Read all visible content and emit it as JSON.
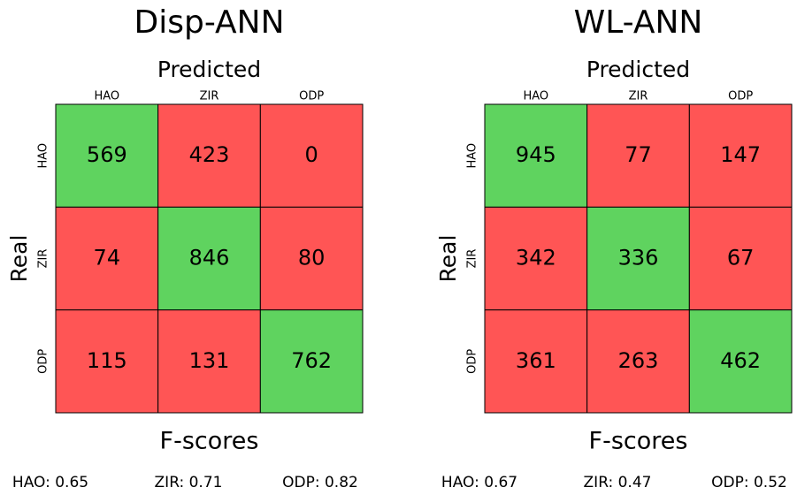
{
  "chart_data": [
    {
      "type": "confusion_matrix",
      "title": "Disp-ANN",
      "xlabel": "Predicted",
      "ylabel": "Real",
      "categories": [
        "HAO",
        "ZIR",
        "ODP"
      ],
      "values": [
        [
          569,
          423,
          0
        ],
        [
          74,
          846,
          80
        ],
        [
          115,
          131,
          762
        ]
      ],
      "diagonal_color": "#5fd35f",
      "off_diagonal_color": "#ff5555",
      "footer_title": "F-scores",
      "footer_items": [
        "HAO: 0.65",
        "ZIR: 0.71",
        "ODP: 0.82"
      ]
    },
    {
      "type": "confusion_matrix",
      "title": "WL-ANN",
      "xlabel": "Predicted",
      "ylabel": "Real",
      "categories": [
        "HAO",
        "ZIR",
        "ODP"
      ],
      "values": [
        [
          945,
          77,
          147
        ],
        [
          342,
          336,
          67
        ],
        [
          361,
          263,
          462
        ]
      ],
      "diagonal_color": "#5fd35f",
      "off_diagonal_color": "#ff5555",
      "footer_title": "F-scores",
      "footer_items": [
        "HAO: 0.67",
        "ZIR: 0.47",
        "ODP: 0.52"
      ]
    }
  ]
}
